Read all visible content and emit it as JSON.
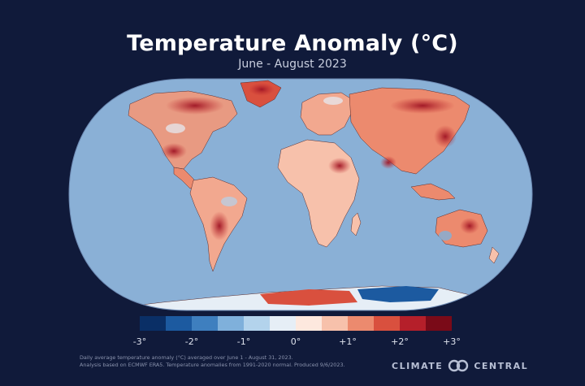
{
  "title": "Temperature Anomaly (°C)",
  "subtitle": "June - August 2023",
  "legend": {
    "labels": [
      "-3°",
      "-2°",
      "-1°",
      "0°",
      "+1°",
      "+2°",
      "+3°"
    ],
    "colors": [
      "#0a2f66",
      "#1c5aa0",
      "#3e7fbf",
      "#7fb0db",
      "#b3d3ec",
      "#e6eef6",
      "#fde8de",
      "#f7c1ab",
      "#ec8a6e",
      "#d9503e",
      "#b51f2a",
      "#7a0a18"
    ]
  },
  "footnote": [
    "Daily average temperature anomaly (°C) averaged over June 1 - August 31, 2023.",
    "Analysis based on ECMWF ERA5. Temperature anomalies from 1991-2020 normal. Produced 9/6/2023."
  ],
  "brand": {
    "left": "CLIMATE",
    "right": "CENTRAL"
  },
  "colors": {
    "background": "#101a3a",
    "ocean": "#8ab0d6",
    "land_warm": "#f2a88f",
    "land_hot": "#c22a2e",
    "land_cold": "#2f6db0"
  }
}
